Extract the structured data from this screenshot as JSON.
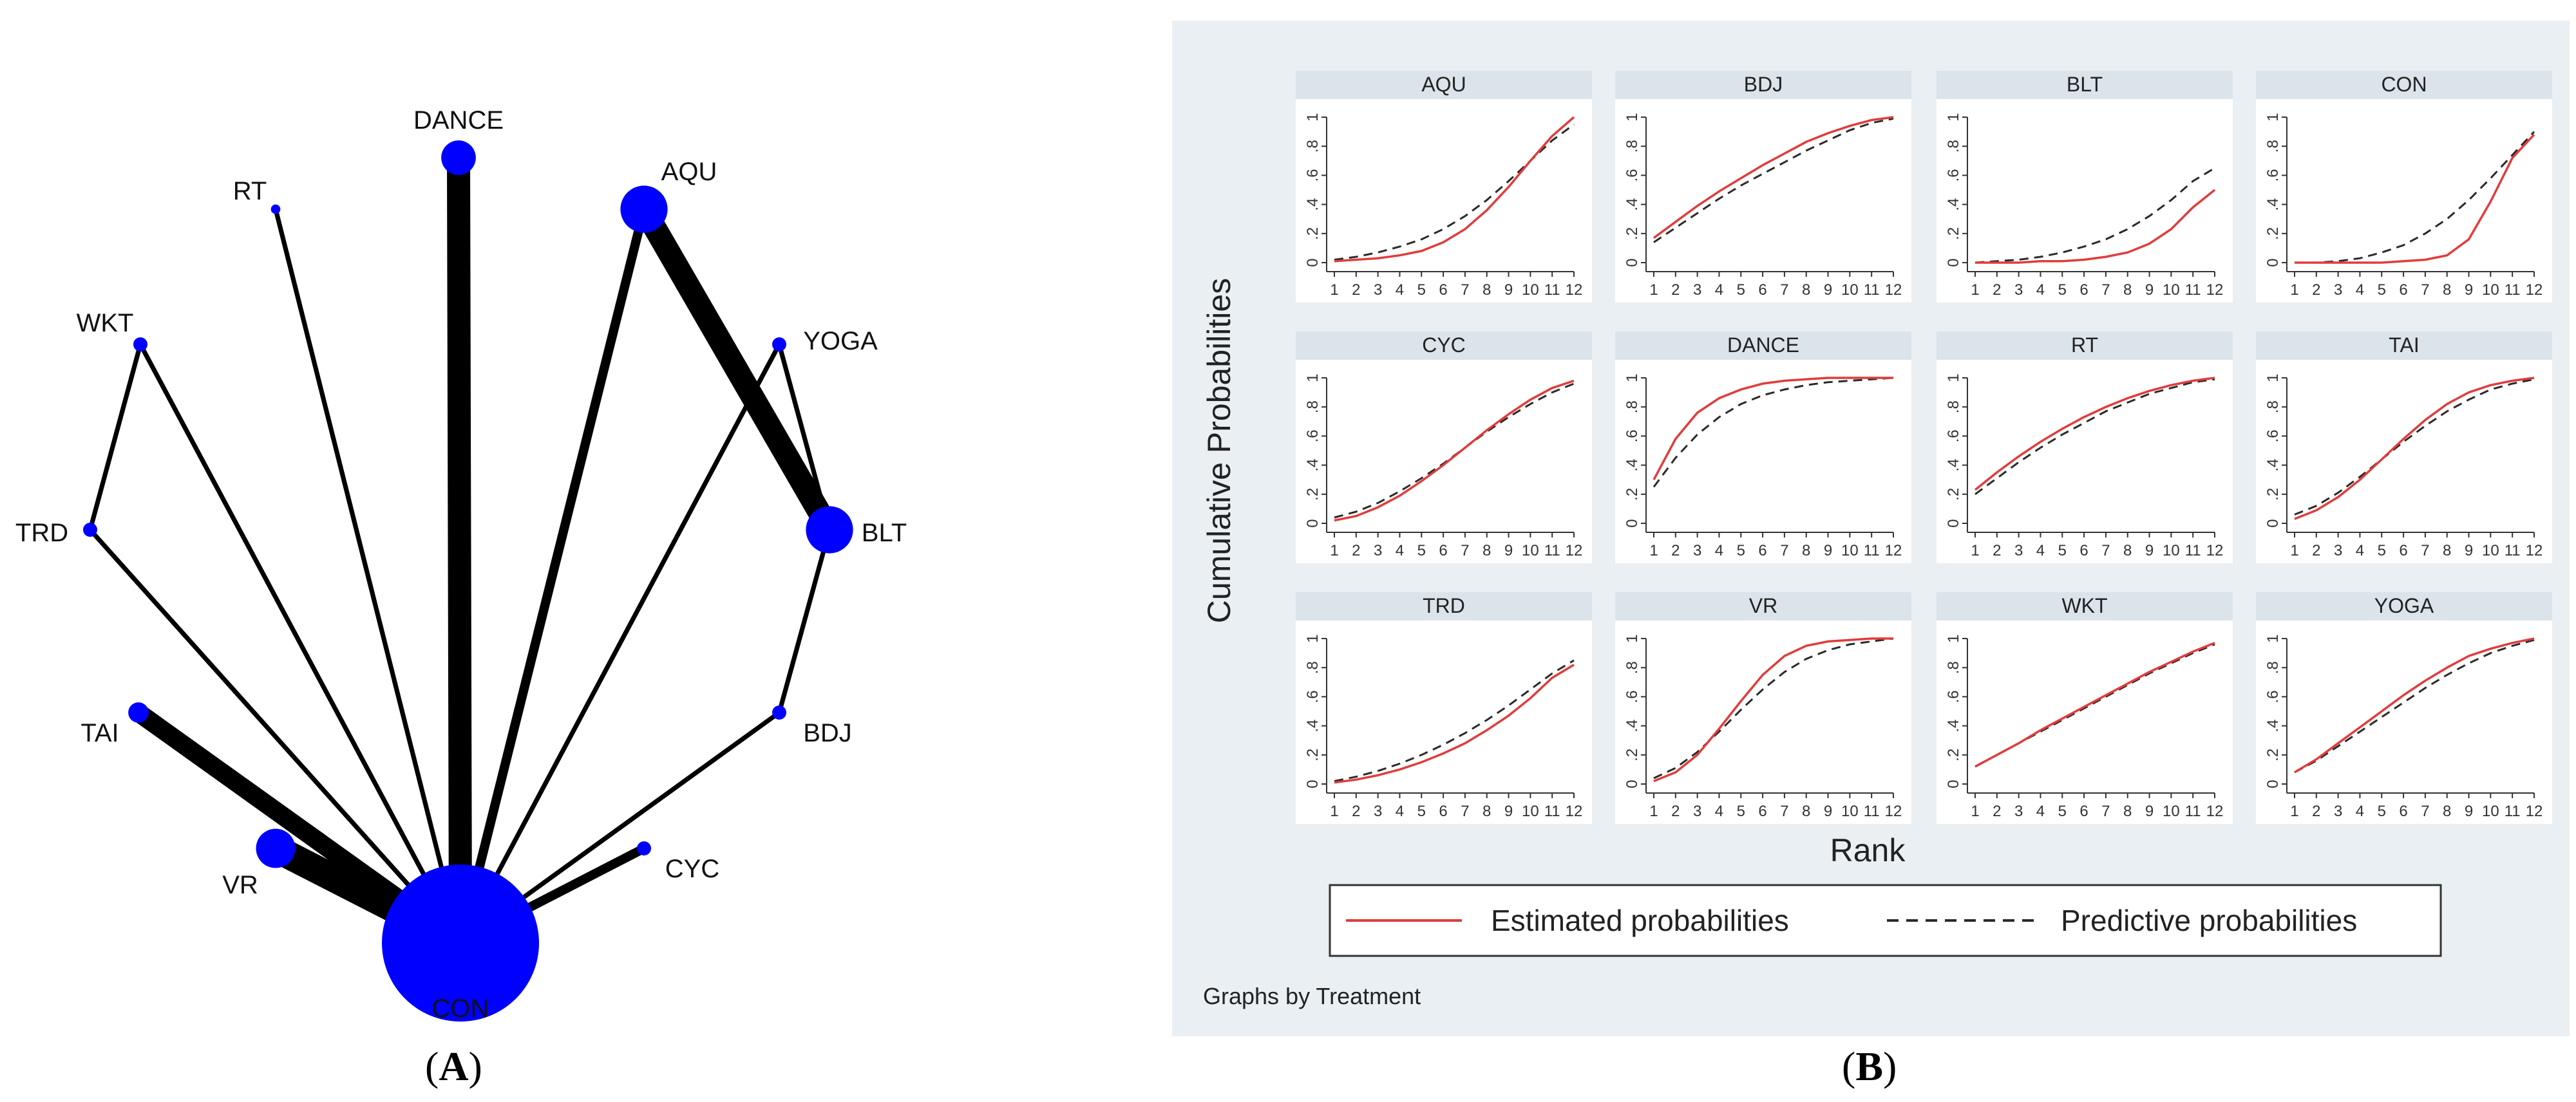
{
  "captions": {
    "a": "A",
    "b": "B"
  },
  "colors": {
    "node": "#0000ff",
    "edge": "#000000",
    "estimated": "#e03c3c",
    "predictive": "#2a2a2a",
    "strip": "#dbe4ea",
    "panel_bg": "#e9eff3",
    "plot_bg": "#ffffff",
    "outer_bg": "#e9eff3"
  },
  "chart_data": [
    {
      "type": "network",
      "panel_label": "A",
      "nodes": [
        {
          "id": "CON",
          "size": 100
        },
        {
          "id": "DANCE",
          "size": 22
        },
        {
          "id": "RT",
          "size": 6
        },
        {
          "id": "AQU",
          "size": 30
        },
        {
          "id": "YOGA",
          "size": 9
        },
        {
          "id": "WKT",
          "size": 9
        },
        {
          "id": "BLT",
          "size": 30
        },
        {
          "id": "TRD",
          "size": 9
        },
        {
          "id": "BDJ",
          "size": 9
        },
        {
          "id": "TAI",
          "size": 13
        },
        {
          "id": "VR",
          "size": 25
        },
        {
          "id": "CYC",
          "size": 9
        }
      ],
      "edges": [
        {
          "from": "CON",
          "to": "DANCE",
          "weight": 10
        },
        {
          "from": "CON",
          "to": "RT",
          "weight": 2
        },
        {
          "from": "CON",
          "to": "AQU",
          "weight": 4
        },
        {
          "from": "CON",
          "to": "WKT",
          "weight": 2
        },
        {
          "from": "CON",
          "to": "TRD",
          "weight": 2
        },
        {
          "from": "CON",
          "to": "YOGA",
          "weight": 2
        },
        {
          "from": "CON",
          "to": "BDJ",
          "weight": 2
        },
        {
          "from": "CON",
          "to": "TAI",
          "weight": 8
        },
        {
          "from": "CON",
          "to": "VR",
          "weight": 12
        },
        {
          "from": "CON",
          "to": "CYC",
          "weight": 4
        },
        {
          "from": "AQU",
          "to": "BLT",
          "weight": 10
        },
        {
          "from": "YOGA",
          "to": "BLT",
          "weight": 2
        },
        {
          "from": "BLT",
          "to": "BDJ",
          "weight": 2
        },
        {
          "from": "WKT",
          "to": "TRD",
          "weight": 2
        }
      ]
    },
    {
      "type": "line",
      "panel_label": "B",
      "ylabel": "Cumulative Probabilities",
      "xlabel": "Rank",
      "note": "Graphs by Treatment",
      "x": [
        1,
        2,
        3,
        4,
        5,
        6,
        7,
        8,
        9,
        10,
        11,
        12
      ],
      "xticks": [
        "1",
        "2",
        "3",
        "4",
        "5",
        "6",
        "7",
        "8",
        "9",
        "10",
        "11",
        "12"
      ],
      "yticks": [
        "0",
        ".2",
        ".4",
        ".6",
        ".8",
        "1"
      ],
      "ylim": [
        0,
        1
      ],
      "legend": {
        "position": "bottom",
        "entries": [
          "Estimated probabilities",
          "Predictive probabilities"
        ]
      },
      "panels": [
        {
          "name": "AQU",
          "estimated": [
            0.01,
            0.02,
            0.03,
            0.05,
            0.08,
            0.14,
            0.23,
            0.36,
            0.52,
            0.7,
            0.87,
            1.0
          ],
          "predictive": [
            0.02,
            0.04,
            0.07,
            0.11,
            0.16,
            0.23,
            0.32,
            0.43,
            0.56,
            0.7,
            0.84,
            0.95
          ]
        },
        {
          "name": "BDJ",
          "estimated": [
            0.17,
            0.28,
            0.39,
            0.49,
            0.58,
            0.67,
            0.75,
            0.83,
            0.89,
            0.94,
            0.98,
            1.0
          ],
          "predictive": [
            0.14,
            0.24,
            0.34,
            0.44,
            0.53,
            0.61,
            0.69,
            0.77,
            0.84,
            0.91,
            0.96,
            0.99
          ]
        },
        {
          "name": "BLT",
          "estimated": [
            0.0,
            0.0,
            0.0,
            0.01,
            0.01,
            0.02,
            0.04,
            0.07,
            0.13,
            0.23,
            0.38,
            0.5
          ],
          "predictive": [
            0.0,
            0.01,
            0.02,
            0.04,
            0.07,
            0.11,
            0.16,
            0.23,
            0.32,
            0.43,
            0.56,
            0.65
          ]
        },
        {
          "name": "CON",
          "estimated": [
            0.0,
            0.0,
            0.0,
            0.0,
            0.0,
            0.01,
            0.02,
            0.05,
            0.16,
            0.42,
            0.72,
            0.88
          ],
          "predictive": [
            0.0,
            0.0,
            0.01,
            0.03,
            0.07,
            0.12,
            0.2,
            0.3,
            0.43,
            0.58,
            0.74,
            0.9
          ]
        },
        {
          "name": "CYC",
          "estimated": [
            0.02,
            0.05,
            0.11,
            0.19,
            0.29,
            0.4,
            0.52,
            0.64,
            0.75,
            0.85,
            0.93,
            0.98
          ],
          "predictive": [
            0.04,
            0.08,
            0.14,
            0.22,
            0.31,
            0.41,
            0.52,
            0.63,
            0.73,
            0.82,
            0.9,
            0.96
          ]
        },
        {
          "name": "DANCE",
          "estimated": [
            0.3,
            0.58,
            0.76,
            0.86,
            0.92,
            0.96,
            0.98,
            0.99,
            1.0,
            1.0,
            1.0,
            1.0
          ],
          "predictive": [
            0.25,
            0.45,
            0.61,
            0.73,
            0.82,
            0.88,
            0.92,
            0.95,
            0.97,
            0.98,
            0.99,
            1.0
          ]
        },
        {
          "name": "RT",
          "estimated": [
            0.23,
            0.35,
            0.46,
            0.56,
            0.65,
            0.73,
            0.8,
            0.86,
            0.91,
            0.95,
            0.98,
            1.0
          ],
          "predictive": [
            0.2,
            0.31,
            0.42,
            0.52,
            0.61,
            0.69,
            0.77,
            0.83,
            0.89,
            0.93,
            0.97,
            0.99
          ]
        },
        {
          "name": "TAI",
          "estimated": [
            0.03,
            0.09,
            0.18,
            0.3,
            0.44,
            0.58,
            0.71,
            0.82,
            0.9,
            0.95,
            0.98,
            1.0
          ],
          "predictive": [
            0.06,
            0.12,
            0.21,
            0.32,
            0.44,
            0.56,
            0.67,
            0.77,
            0.85,
            0.92,
            0.96,
            0.99
          ]
        },
        {
          "name": "TRD",
          "estimated": [
            0.01,
            0.03,
            0.06,
            0.1,
            0.15,
            0.21,
            0.28,
            0.37,
            0.47,
            0.59,
            0.73,
            0.82
          ],
          "predictive": [
            0.02,
            0.05,
            0.09,
            0.14,
            0.2,
            0.27,
            0.35,
            0.44,
            0.54,
            0.65,
            0.76,
            0.85
          ]
        },
        {
          "name": "VR",
          "estimated": [
            0.02,
            0.08,
            0.2,
            0.38,
            0.57,
            0.75,
            0.88,
            0.95,
            0.98,
            0.99,
            1.0,
            1.0
          ],
          "predictive": [
            0.04,
            0.11,
            0.22,
            0.36,
            0.51,
            0.65,
            0.77,
            0.86,
            0.92,
            0.96,
            0.98,
            1.0
          ]
        },
        {
          "name": "WKT",
          "estimated": [
            0.12,
            0.2,
            0.28,
            0.37,
            0.45,
            0.53,
            0.61,
            0.69,
            0.77,
            0.84,
            0.91,
            0.97
          ],
          "predictive": [
            0.12,
            0.2,
            0.28,
            0.36,
            0.44,
            0.52,
            0.6,
            0.68,
            0.76,
            0.83,
            0.9,
            0.96
          ]
        },
        {
          "name": "YOGA",
          "estimated": [
            0.08,
            0.17,
            0.28,
            0.39,
            0.5,
            0.61,
            0.71,
            0.8,
            0.88,
            0.93,
            0.97,
            1.0
          ],
          "predictive": [
            0.08,
            0.16,
            0.26,
            0.36,
            0.46,
            0.56,
            0.66,
            0.75,
            0.83,
            0.9,
            0.95,
            0.99
          ]
        }
      ]
    }
  ]
}
